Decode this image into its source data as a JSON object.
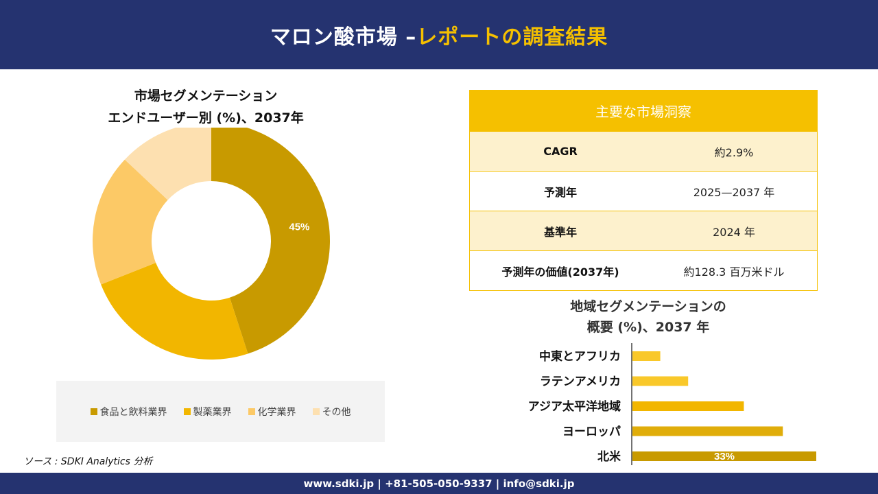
{
  "header": {
    "title_main": "マロン酸市場 –",
    "title_accent": "レポートの調査結果"
  },
  "donut": {
    "title_line1": "市場セグメンテーション",
    "title_line2": "エンドユーザー別 (%)、2037年"
  },
  "insights": {
    "heading": "主要な市場洞察",
    "rows": [
      {
        "label": "CAGR",
        "value": "約2.9%"
      },
      {
        "label": "予測年",
        "value": "2025—2037 年"
      },
      {
        "label": "基準年",
        "value": "2024 年"
      },
      {
        "label": "予測年の価値(2037年)",
        "value": "約128.3 百万米ドル"
      }
    ]
  },
  "bars": {
    "title_line1": "地域セグメンテーションの",
    "title_line2": "概要 (%)、2037 年"
  },
  "source": "ソース : SDKI Analytics 分析",
  "footer": "www.sdki.jp | +81-505-050-9337 | info@sdki.jp",
  "colors": {
    "navy": "#253370",
    "gold": "#f5c000"
  },
  "chart_data": [
    {
      "type": "pie",
      "categories": [
        "食品と飲料業界",
        "製薬業界",
        "化学業界",
        "その他"
      ],
      "values": [
        45,
        24,
        18,
        13
      ],
      "data_labels": [
        "45%",
        "",
        "",
        ""
      ],
      "colors": [
        "#c89a00",
        "#f2b600",
        "#fcc966",
        "#fde0b0"
      ],
      "legend_position": "bottom"
    },
    {
      "type": "bar",
      "orientation": "horizontal",
      "categories": [
        "中東とアフリカ",
        "ラテンアメリカ",
        "アジア太平洋地域",
        "ヨーロッパ",
        "北米"
      ],
      "values": [
        5,
        10,
        20,
        27,
        33
      ],
      "data_labels": [
        "",
        "",
        "",
        "",
        "33%"
      ],
      "colors": [
        "#f9c82a",
        "#f9c82a",
        "#f2b600",
        "#e0ad0a",
        "#c89a00"
      ]
    }
  ]
}
